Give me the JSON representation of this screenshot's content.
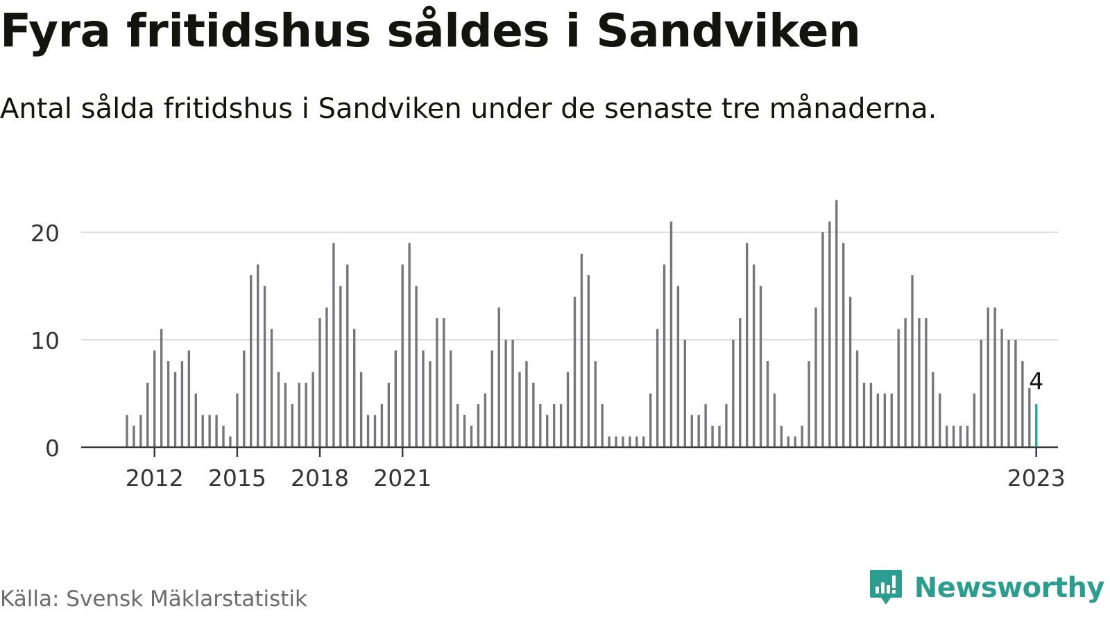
{
  "title": "Fyra fritidshus såldes i Sandviken",
  "subtitle": "Antal sålda fritidshus i Sandviken under de senaste tre månaderna.",
  "source": "Källa: Svensk Mäklarstatistik",
  "brand": {
    "name": "Newsworthy",
    "icon": "newsworthy-logo-icon"
  },
  "colors": {
    "bar": "#76767a",
    "highlight": "#1fa89a",
    "grid": "#dedede",
    "axis": "#3a3a3a",
    "brand": "#2a9d8f"
  },
  "chart_data": {
    "type": "bar",
    "x_unit": "quarter",
    "start": "2011-Q1",
    "values": [
      3,
      2,
      3,
      6,
      9,
      11,
      8,
      7,
      8,
      9,
      5,
      3,
      3,
      3,
      2,
      1,
      5,
      9,
      16,
      17,
      15,
      11,
      7,
      6,
      4,
      6,
      6,
      7,
      12,
      13,
      19,
      15,
      17,
      11,
      7,
      3,
      3,
      4,
      6,
      9,
      17,
      19,
      15,
      9,
      8,
      12,
      12,
      9,
      4,
      3,
      2,
      4,
      5,
      9,
      13,
      10,
      10,
      7,
      8,
      6,
      4,
      3,
      4,
      4,
      7,
      14,
      18,
      16,
      8,
      4,
      1,
      1,
      1,
      1,
      1,
      1,
      5,
      11,
      17,
      21,
      15,
      10,
      3,
      3,
      4,
      2,
      2,
      4,
      10,
      12,
      19,
      17,
      15,
      8,
      5,
      2,
      1,
      1,
      2,
      8,
      13,
      20,
      21,
      23,
      19,
      14,
      9,
      6,
      6,
      5,
      5,
      5,
      11,
      12,
      16,
      12,
      12,
      7,
      5,
      2,
      2,
      2,
      2,
      5,
      10,
      13,
      13,
      11,
      10,
      10,
      8,
      5.5,
      4
    ],
    "highlight_label": "4",
    "x_ticks": [
      "2012",
      "2015",
      "2018",
      "2021",
      "2023"
    ],
    "y_ticks": [
      "0",
      "10",
      "20"
    ],
    "ylim": [
      0,
      23
    ],
    "grid": true,
    "xlabel": "",
    "ylabel": ""
  }
}
